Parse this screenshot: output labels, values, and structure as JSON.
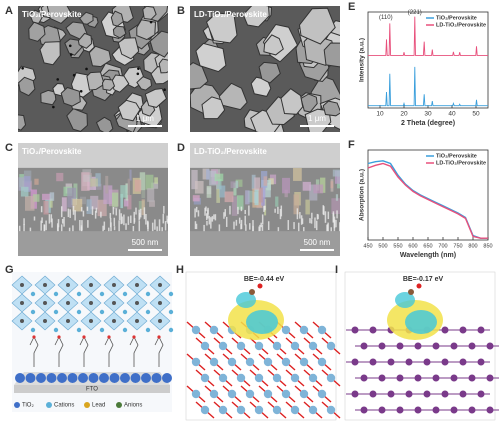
{
  "panels": [
    {
      "label": "A",
      "caption": "TiO₂/Perovskite",
      "scale_bar": "1 μm"
    },
    {
      "label": "B",
      "caption": "LD-TiO₂/Perovskite",
      "scale_bar": "1 μm"
    },
    {
      "label": "C",
      "caption": "TiO₂/Perovskite",
      "scale_bar": "500 nm"
    },
    {
      "label": "D",
      "caption": "LD-TiO₂/Perovskite",
      "scale_bar": "500 nm"
    },
    {
      "label": "G",
      "substrate": "FTO",
      "legend": [
        "TiO₂",
        "Cations",
        "Lead",
        "Anions"
      ]
    },
    {
      "label": "H",
      "caption": "BE=-0.44 eV"
    },
    {
      "label": "I",
      "caption": "BE=-0.17 eV"
    }
  ],
  "chart_data": [
    {
      "type": "line",
      "label": "E",
      "xlabel": "2 Theta (degree)",
      "ylabel": "Intensity (a.u.)",
      "annotations": [
        "(110)",
        "(221)"
      ],
      "x": [
        5,
        12.4,
        12.7,
        13.0,
        13.8,
        14.1,
        14.4,
        19.7,
        20,
        20.3,
        24.2,
        24.5,
        24.8,
        28.1,
        28.4,
        28.7,
        31.5,
        31.8,
        32.1,
        40.3,
        40.6,
        40.9,
        42.9,
        43.2,
        43.5,
        49.9,
        50.2,
        50.5,
        55
      ],
      "xlim": [
        5,
        55
      ],
      "xticks": [
        10,
        20,
        30,
        40,
        50
      ],
      "ylim": [
        0,
        2.1
      ],
      "legend": "upper right",
      "series": [
        {
          "name": "TiO₂/Perovskite",
          "color": "#3a9fdc",
          "values": [
            0.05,
            0.05,
            0.35,
            0.05,
            0.05,
            0.75,
            0.05,
            0.05,
            0.1,
            0.05,
            0.05,
            0.9,
            0.05,
            0.05,
            0.3,
            0.05,
            0.05,
            0.15,
            0.05,
            0.05,
            0.1,
            0.05,
            0.05,
            0.08,
            0.05,
            0.05,
            0.18,
            0.05,
            0.05
          ]
        },
        {
          "name": "LD-TiO₂/Perovskite",
          "color": "#e8507c",
          "values": [
            1.15,
            1.15,
            1.5,
            1.15,
            1.15,
            1.85,
            1.15,
            1.15,
            1.22,
            1.15,
            1.15,
            2.0,
            1.15,
            1.15,
            1.45,
            1.15,
            1.15,
            1.28,
            1.15,
            1.15,
            1.23,
            1.15,
            1.15,
            1.22,
            1.15,
            1.15,
            1.35,
            1.15,
            1.15
          ]
        }
      ]
    },
    {
      "type": "line",
      "label": "F",
      "xlabel": "Wavelength (nm)",
      "ylabel": "Absorption (a.u.)",
      "x": [
        450,
        475,
        500,
        525,
        550,
        575,
        600,
        625,
        650,
        675,
        700,
        725,
        750,
        775,
        800,
        825,
        850
      ],
      "xlim": [
        450,
        850
      ],
      "xticks": [
        450,
        500,
        550,
        600,
        650,
        700,
        750,
        800,
        850
      ],
      "ylim": [
        0,
        1
      ],
      "legend": "upper right",
      "series": [
        {
          "name": "TiO₂/Perovskite",
          "color": "#3a9fdc",
          "values": [
            0.85,
            0.87,
            0.88,
            0.85,
            0.72,
            0.62,
            0.55,
            0.5,
            0.46,
            0.42,
            0.38,
            0.34,
            0.3,
            0.25,
            0.05,
            0.02,
            0.02
          ]
        },
        {
          "name": "LD-TiO₂/Perovskite",
          "color": "#e8507c",
          "values": [
            0.8,
            0.83,
            0.85,
            0.82,
            0.7,
            0.61,
            0.54,
            0.49,
            0.45,
            0.41,
            0.37,
            0.33,
            0.29,
            0.24,
            0.04,
            0.02,
            0.02
          ]
        }
      ]
    }
  ]
}
